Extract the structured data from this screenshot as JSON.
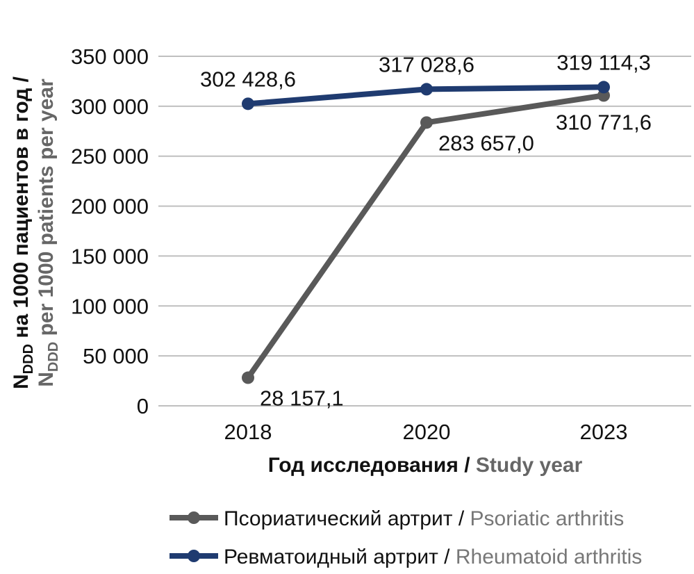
{
  "chart_data": {
    "type": "line",
    "categories": [
      "2018",
      "2020",
      "2023"
    ],
    "ylim": [
      0,
      350000
    ],
    "y_ticks": [
      {
        "value": 0,
        "label": "0"
      },
      {
        "value": 50000,
        "label": "50 000"
      },
      {
        "value": 100000,
        "label": "100 000"
      },
      {
        "value": 150000,
        "label": "150 000"
      },
      {
        "value": 200000,
        "label": "200 000"
      },
      {
        "value": 250000,
        "label": "250 000"
      },
      {
        "value": 300000,
        "label": "300 000"
      },
      {
        "value": 350000,
        "label": "350 000"
      }
    ],
    "grid": true,
    "legend_position": "bottom",
    "xlabel": {
      "ru": "Год исследования",
      "sep": " / ",
      "en": "Study year"
    },
    "ylabel": {
      "line1": {
        "main": "N",
        "sub": "DDD",
        "rest": " на 1000 пациентов в год /"
      },
      "line2": {
        "main": "N",
        "sub": "DDD",
        "rest": " per 1000 patients per year"
      }
    },
    "series": [
      {
        "key": "psoriatic",
        "name_ru": "Псориатический артрит",
        "sep": " / ",
        "name_en": "Psoriatic arthritis",
        "color": "#595959",
        "values": [
          28157.1,
          283657.0,
          310771.6
        ],
        "labels": [
          "28 157,1",
          "283 657,0",
          "310 771,6"
        ],
        "label_positions": [
          "right-below",
          "right-below",
          "below"
        ]
      },
      {
        "key": "rheumatoid",
        "name_ru": "Ревматоидный артрит",
        "sep": " / ",
        "name_en": "Rheumatoid arthritis",
        "color": "#1F3B70",
        "values": [
          302428.6,
          317028.6,
          319114.3
        ],
        "labels": [
          "302 428,6",
          "317 028,6",
          "319 114,3"
        ],
        "label_positions": [
          "above",
          "above",
          "above"
        ]
      }
    ]
  }
}
